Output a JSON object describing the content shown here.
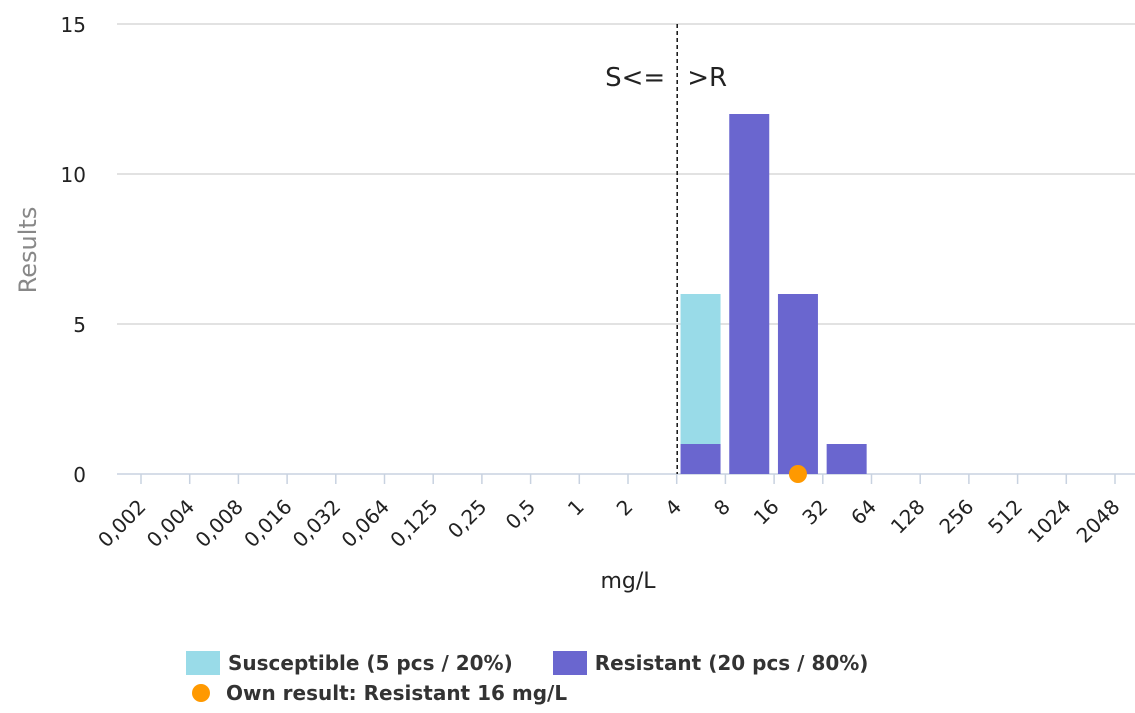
{
  "chart_data": {
    "type": "bar",
    "stacked": true,
    "categories": [
      "0,002",
      "0,004",
      "0,008",
      "0,016",
      "0,032",
      "0,064",
      "0,125",
      "0,25",
      "0,5",
      "1",
      "2",
      "4",
      "8",
      "16",
      "32",
      "64",
      "128",
      "256",
      "512",
      "1024",
      "2048"
    ],
    "series": [
      {
        "name": "Susceptible (5 pcs / 20%)",
        "color": "#99dbe8",
        "values": [
          0,
          0,
          0,
          0,
          0,
          0,
          0,
          0,
          0,
          0,
          0,
          5,
          0,
          0,
          0,
          0,
          0,
          0,
          0,
          0,
          0
        ]
      },
      {
        "name": "Resistant (20 pcs / 80%)",
        "color": "#6a66cf",
        "values": [
          0,
          0,
          0,
          0,
          0,
          0,
          0,
          0,
          0,
          0,
          0,
          1,
          12,
          6,
          1,
          0,
          0,
          0,
          0,
          0,
          0
        ]
      }
    ],
    "xlabel": "mg/L",
    "ylabel": "Results",
    "ylim": [
      0,
      15
    ],
    "yticks": [
      0,
      5,
      10,
      15
    ],
    "grid": true,
    "breakpoint": {
      "category": "4",
      "label_left": "S<=",
      "label_right": ">R"
    },
    "own_result": {
      "category": "16",
      "value": 0,
      "label": "Own result: Resistant 16 mg/L",
      "color": "#ff9900"
    },
    "legend_position": "bottom"
  }
}
